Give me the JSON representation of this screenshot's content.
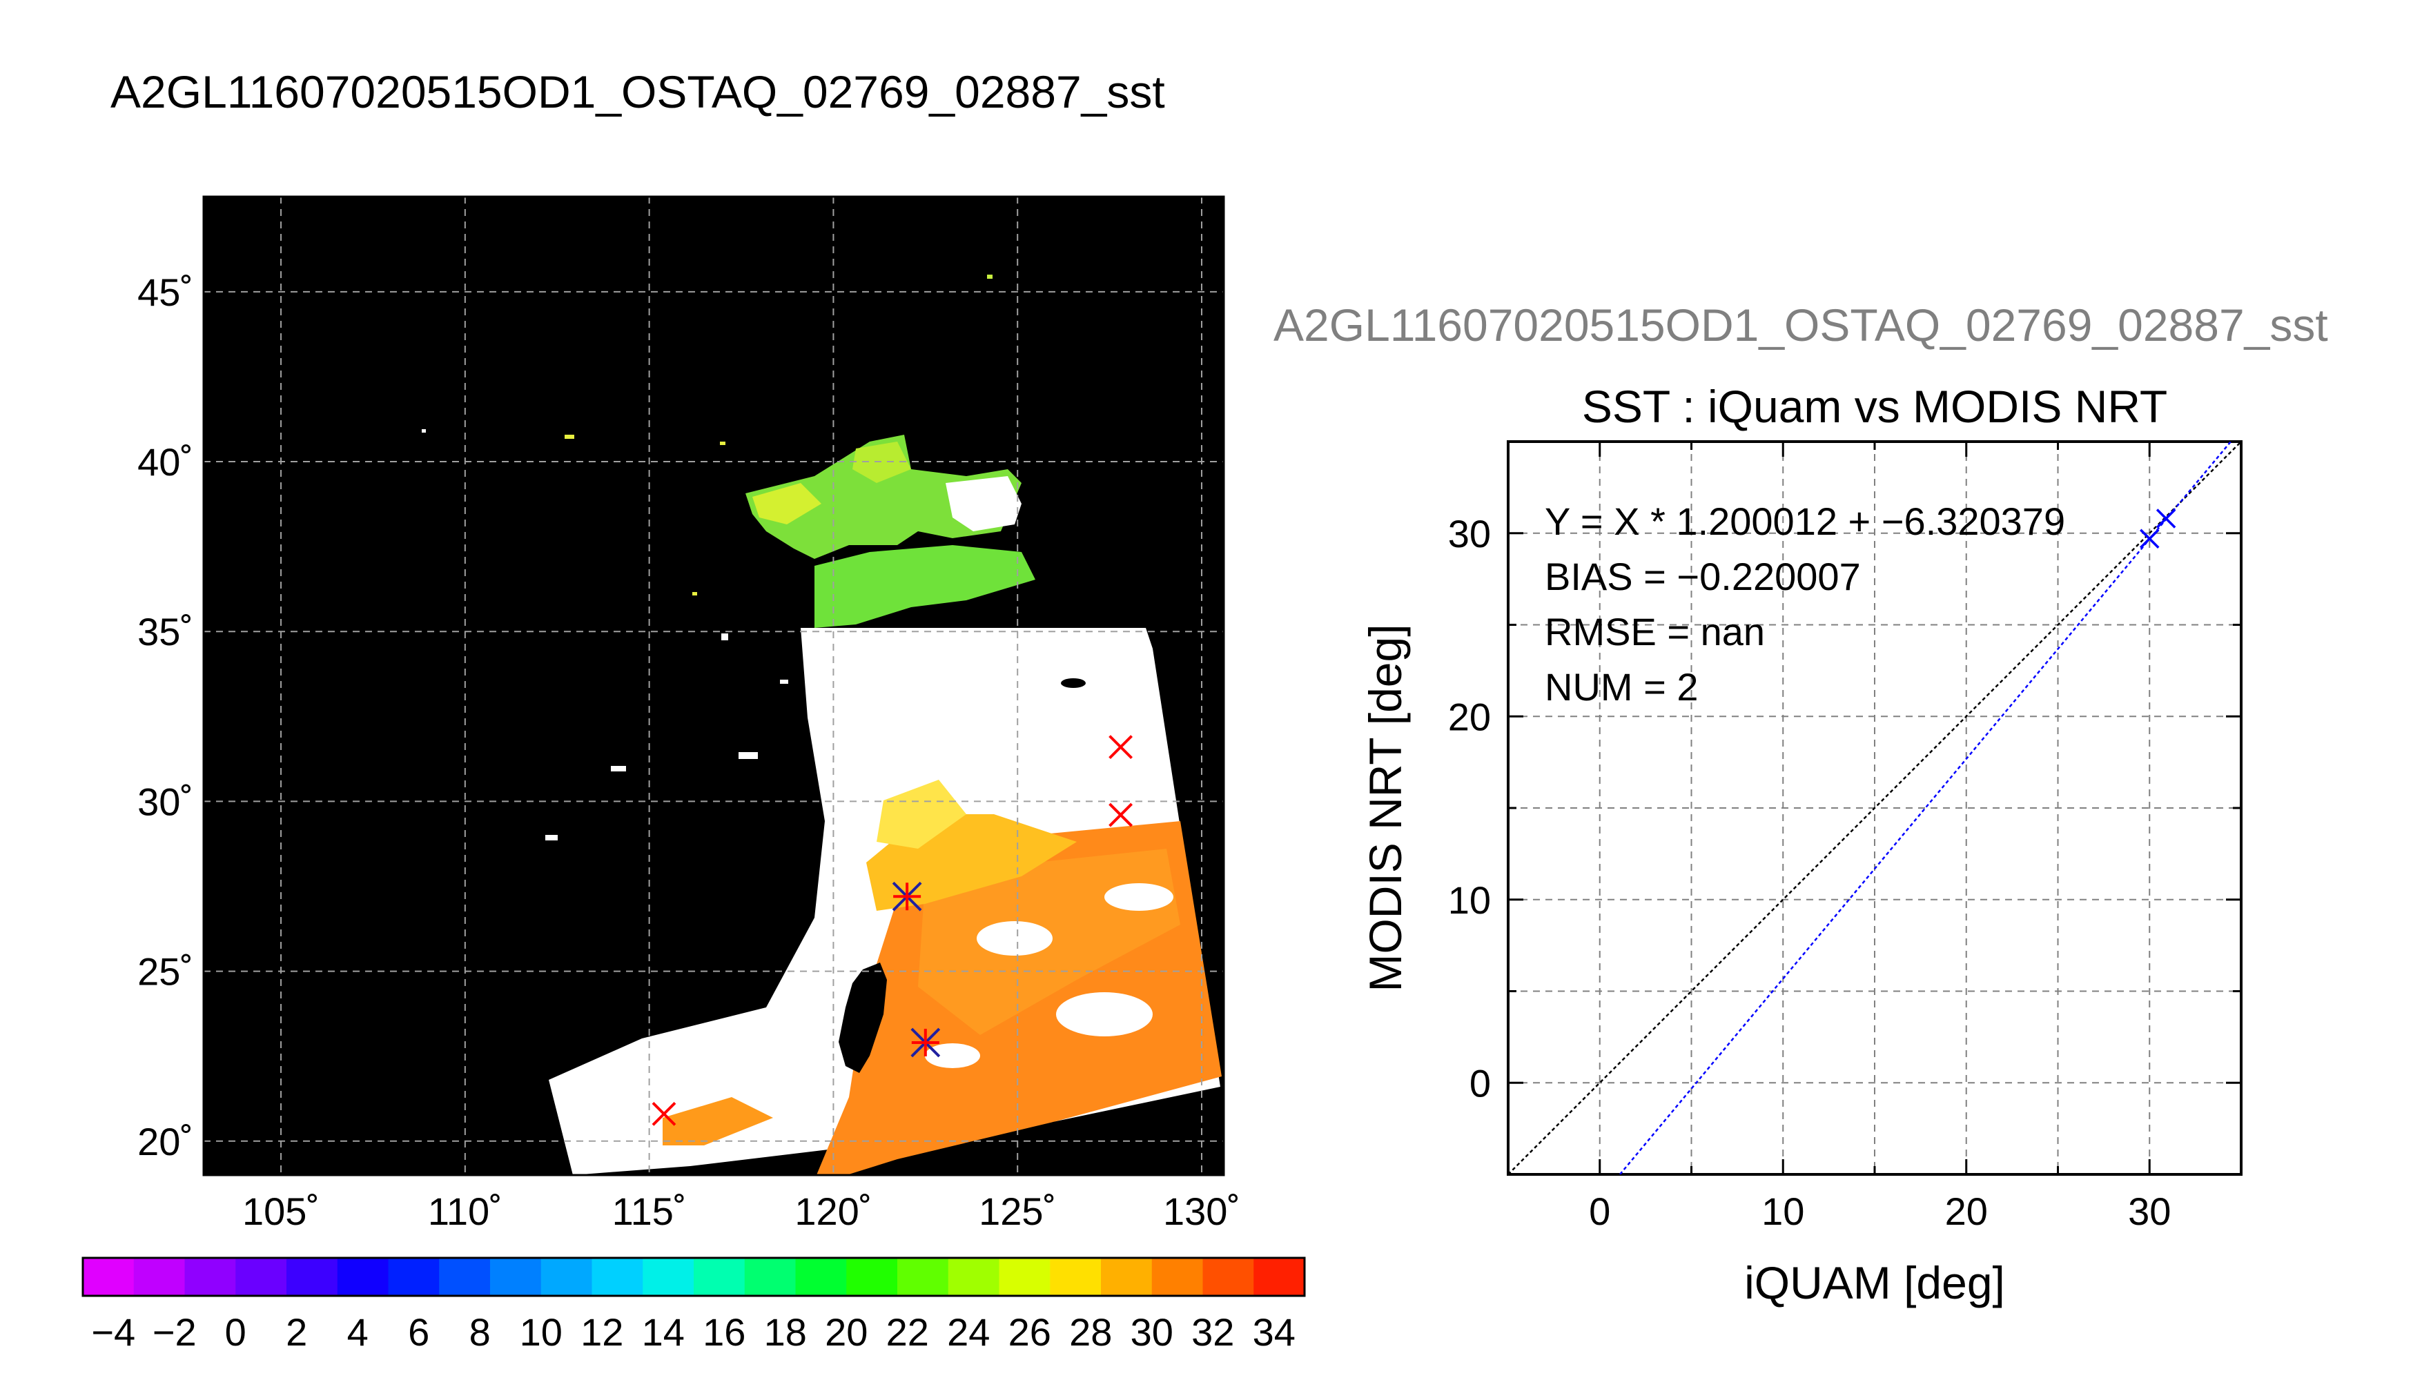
{
  "main_title": "A2GL11607020515OD1_OSTAQ_02769_02887_sst",
  "sub_title": "A2GL11607020515OD1_OSTAQ_02769_02887_sst",
  "chart_data": [
    {
      "type": "map",
      "x_ticks": [
        "105˚",
        "110˚",
        "115˚",
        "120˚",
        "125˚",
        "130˚"
      ],
      "x_tick_values": [
        105,
        110,
        115,
        120,
        125,
        130
      ],
      "y_ticks": [
        "20˚",
        "25˚",
        "30˚",
        "35˚",
        "40˚",
        "45˚"
      ],
      "y_tick_values": [
        20,
        25,
        30,
        35,
        40,
        45
      ],
      "lon_range": [
        102.9,
        130.6
      ],
      "lat_range": [
        19.0,
        47.8
      ],
      "grid": true,
      "background": "#000000",
      "insitu_x_markers": [
        {
          "lon": 115.4,
          "lat": 20.8
        },
        {
          "lon": 127.8,
          "lat": 31.6
        },
        {
          "lon": 127.8,
          "lat": 29.6
        }
      ],
      "match_markers": [
        {
          "lon": 122.0,
          "lat": 27.2
        },
        {
          "lon": 122.5,
          "lat": 22.9
        }
      ],
      "marker_color": "#ff0000",
      "match_marker_color": "#2020a0"
    },
    {
      "type": "colorbar",
      "tick_labels": [
        "−4",
        "−2",
        "0",
        "2",
        "4",
        "6",
        "8",
        "10",
        "12",
        "14",
        "16",
        "18",
        "20",
        "22",
        "24",
        "26",
        "28",
        "30",
        "32",
        "34"
      ],
      "range": [
        -5,
        35
      ],
      "colors": [
        "#e000ff",
        "#c000ff",
        "#9000ff",
        "#6a00ff",
        "#3c00ff",
        "#1000ff",
        "#0020ff",
        "#0050ff",
        "#0080ff",
        "#00a8ff",
        "#00d0ff",
        "#00f0e8",
        "#00ffb0",
        "#00ff70",
        "#00ff30",
        "#20ff00",
        "#60ff00",
        "#a0ff00",
        "#d8ff00",
        "#ffe000",
        "#ffb000",
        "#ff8000",
        "#ff5000",
        "#ff2000"
      ]
    },
    {
      "type": "scatter",
      "title": "SST : iQuam vs MODIS NRT",
      "xlabel": "iQUAM [deg]",
      "ylabel": "MODIS NRT [deg]",
      "xlim": [
        -5,
        35
      ],
      "ylim": [
        -5,
        35
      ],
      "x_ticks": [
        0,
        10,
        20,
        30
      ],
      "y_ticks": [
        0,
        10,
        20,
        30
      ],
      "grid": true,
      "points": [
        {
          "x": 30.0,
          "y": 29.7
        },
        {
          "x": 30.9,
          "y": 30.8
        }
      ],
      "fit": {
        "slope": 1.200012,
        "intercept": -6.320379,
        "color": "#0000ff"
      },
      "identity_line_color": "#000000",
      "point_color": "#0000ff",
      "stats": [
        "Y = X * 1.200012 + −6.320379",
        "BIAS = −0.220007",
        "RMSE = nan",
        "NUM = 2"
      ]
    }
  ]
}
